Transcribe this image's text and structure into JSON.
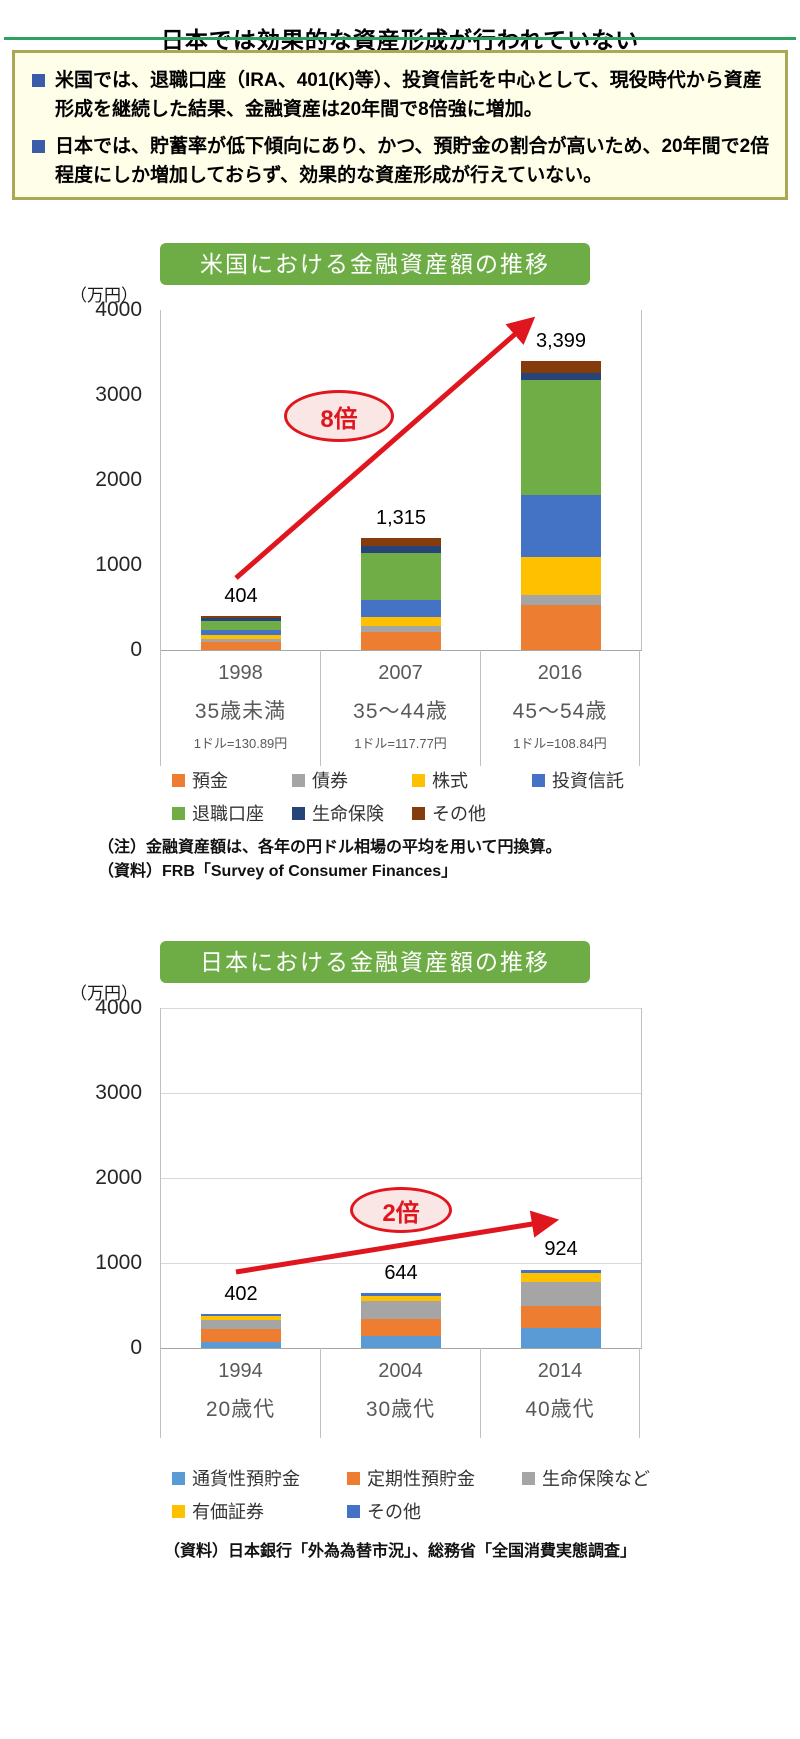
{
  "page": {
    "title": "日本では効果的な資産形成が行われていない"
  },
  "colors": {
    "title_underline": "#2EA05F",
    "box_border": "#A8A857",
    "box_background": "#FFFEE8",
    "bullet_blue": "#3B5CA8",
    "badge_green": "#6EAD46",
    "accent_red": "#E0161F",
    "annotation_fill": "#FAE6E4"
  },
  "summary_box": {
    "bullets": [
      "米国では、退職口座（IRA、401(K)等）、投資信託を中心として、現役時代から資産形成を継続した結果、金融資産は20年間で8倍強に増加。",
      "日本では、貯蓄率が低下傾向にあり、かつ、預貯金の割合が高いため、20年間で2倍程度にしか増加しておらず、効果的な資産形成が行えていない。"
    ]
  },
  "chart_data": [
    {
      "type": "bar",
      "stacked": true,
      "title": "米国における金融資産額の推移",
      "unit_label": "（万円）",
      "ylim": [
        0,
        4000
      ],
      "yticks": [
        0,
        1000,
        2000,
        3000,
        4000
      ],
      "grid": false,
      "categories": [
        "1998",
        "2007",
        "2016"
      ],
      "age_labels": [
        "35歳未満",
        "35～44歳",
        "45～54歳"
      ],
      "rate_labels": [
        "1ドル=130.89円",
        "1ドル=117.77円",
        "1ドル=108.84円"
      ],
      "totals": [
        404,
        1315,
        3399
      ],
      "total_labels": [
        "404",
        "1,315",
        "3,399"
      ],
      "annotation": "8倍",
      "series": [
        {
          "name": "預金",
          "color": "#ED7D31",
          "values": [
            95,
            212,
            529
          ]
        },
        {
          "name": "債券",
          "color": "#A5A5A5",
          "values": [
            36,
            71,
            118
          ]
        },
        {
          "name": "株式",
          "color": "#FFC000",
          "values": [
            48,
            106,
            447
          ]
        },
        {
          "name": "投資信託",
          "color": "#4472C4",
          "values": [
            59,
            200,
            729
          ]
        },
        {
          "name": "退職口座",
          "color": "#70AD47",
          "values": [
            107,
            553,
            1352
          ]
        },
        {
          "name": "生命保険",
          "color": "#264478",
          "values": [
            36,
            82,
            82
          ]
        },
        {
          "name": "その他",
          "color": "#843C0C",
          "values": [
            23,
            91,
            142
          ]
        }
      ],
      "legend_rows": [
        [
          0,
          1,
          2,
          3
        ],
        [
          4,
          5,
          6
        ]
      ],
      "notes": [
        "（注）金融資産額は、各年の円ドル相場の平均を用いて円換算。",
        "（資料）FRB「Survey of Consumer Finances」"
      ]
    },
    {
      "type": "bar",
      "stacked": true,
      "title": "日本における金融資産額の推移",
      "unit_label": "（万円）",
      "ylim": [
        0,
        4000
      ],
      "yticks": [
        0,
        1000,
        2000,
        3000,
        4000
      ],
      "grid": true,
      "categories": [
        "1994",
        "2004",
        "2014"
      ],
      "age_labels": [
        "20歳代",
        "30歳代",
        "40歳代"
      ],
      "rate_labels": null,
      "totals": [
        402,
        644,
        924
      ],
      "total_labels": [
        "402",
        "644",
        "924"
      ],
      "annotation": "2倍",
      "series": [
        {
          "name": "通貨性預貯金",
          "color": "#5B9BD5",
          "values": [
            71,
            140,
            234
          ]
        },
        {
          "name": "定期性預貯金",
          "color": "#ED7D31",
          "values": [
            153,
            200,
            257
          ]
        },
        {
          "name": "生命保険など",
          "color": "#A5A5A5",
          "values": [
            106,
            211,
            281
          ]
        },
        {
          "name": "有価証券",
          "color": "#FFC000",
          "values": [
            47,
            58,
            105
          ]
        },
        {
          "name": "その他",
          "color": "#4472C4",
          "values": [
            25,
            35,
            47
          ]
        }
      ],
      "legend_rows": [
        [
          0,
          1,
          2
        ],
        [
          3,
          4
        ]
      ],
      "notes": [
        "（資料）日本銀行「外為為替市況」、総務省「全国消費実態調査」"
      ]
    }
  ]
}
